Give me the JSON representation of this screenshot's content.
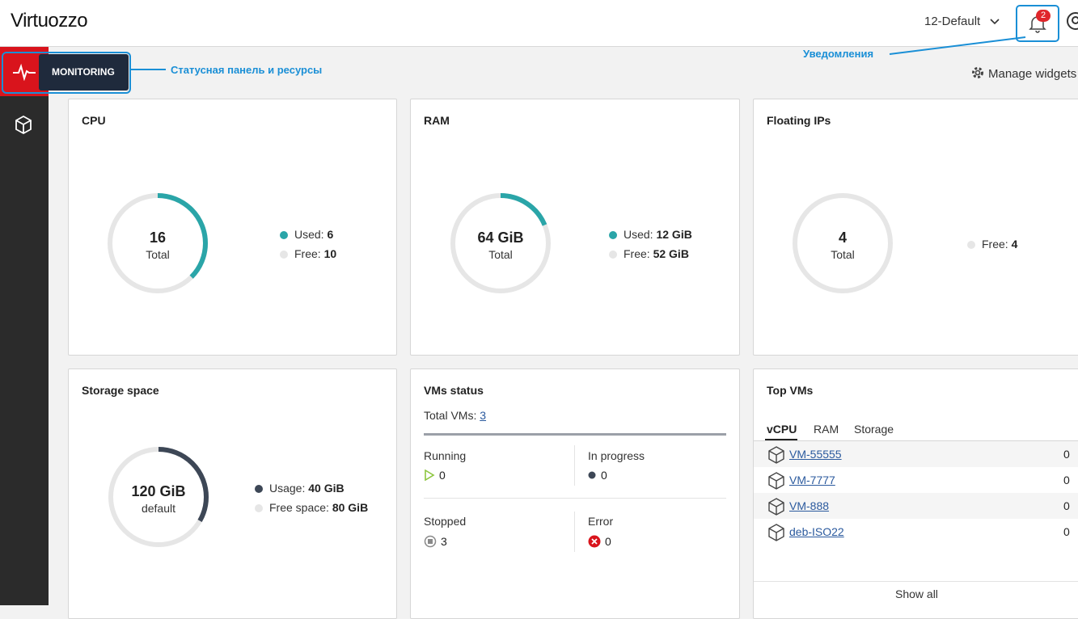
{
  "header": {
    "logo": "Virtuozzo",
    "project": "12-Default",
    "notification_count": 2
  },
  "sidebar": {
    "monitoring": "MONITORING"
  },
  "annotations": {
    "status_panel": "Статусная панель и ресурсы",
    "notifications": "Уведомления"
  },
  "toolbar": {
    "manage_widgets": "Manage widgets"
  },
  "widgets": {
    "cpu": {
      "title": "CPU",
      "total": 16,
      "total_caption": "Total",
      "used_label": "Used:",
      "used": 6,
      "free_label": "Free:",
      "free": 10
    },
    "ram": {
      "title": "RAM",
      "total": {
        "value": 64,
        "label": "64 GiB"
      },
      "total_caption": "Total",
      "used_label": "Used:",
      "used": {
        "value": 12,
        "label": "12 GiB"
      },
      "free_label": "Free:",
      "free": {
        "value": 52,
        "label": "52 GiB"
      }
    },
    "floating_ips": {
      "title": "Floating IPs",
      "total": 4,
      "total_caption": "Total",
      "free_label": "Free:",
      "free": 4
    },
    "storage": {
      "title": "Storage space",
      "total": {
        "value": 120,
        "label": "120 GiB"
      },
      "total_caption": "default",
      "usage_label": "Usage:",
      "usage": {
        "value": 40,
        "label": "40 GiB"
      },
      "free_label": "Free space:",
      "free": {
        "value": 80,
        "label": "80 GiB"
      }
    },
    "vms_status": {
      "title": "VMs status",
      "total_label": "Total VMs:",
      "total": 3,
      "running_label": "Running",
      "running": 0,
      "in_progress_label": "In progress",
      "in_progress": 0,
      "stopped_label": "Stopped",
      "stopped": 3,
      "error_label": "Error",
      "error": 0
    },
    "top_vms": {
      "title": "Top VMs",
      "tabs": [
        "vCPU",
        "RAM",
        "Storage"
      ],
      "rows": [
        [
          "VM-55555",
          0
        ],
        [
          "VM-7777",
          0
        ],
        [
          "VM-888",
          0
        ],
        [
          "deb-ISO22",
          0
        ]
      ],
      "show_all": "Show all"
    }
  }
}
